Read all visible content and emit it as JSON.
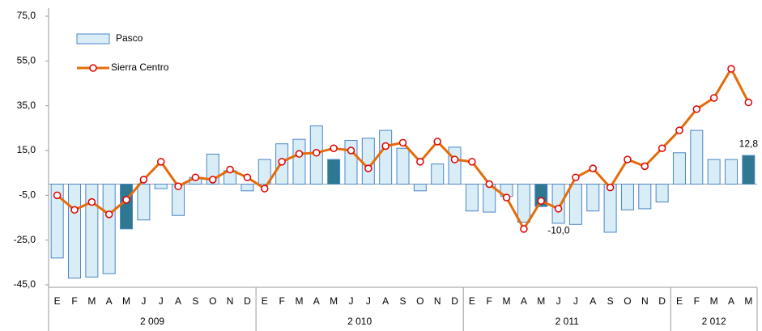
{
  "chart_data": {
    "type": "bar-line",
    "categories": [
      "E",
      "F",
      "M",
      "A",
      "M",
      "J",
      "J",
      "A",
      "S",
      "O",
      "N",
      "D",
      "E",
      "F",
      "M",
      "A",
      "M",
      "J",
      "J",
      "A",
      "S",
      "O",
      "N",
      "D",
      "E",
      "F",
      "M",
      "A",
      "M",
      "J",
      "J",
      "A",
      "S",
      "O",
      "N",
      "D",
      "E",
      "F",
      "M",
      "A",
      "M"
    ],
    "groups": [
      {
        "label": "2 009",
        "span": 12
      },
      {
        "label": "2 010",
        "span": 12
      },
      {
        "label": "2 011",
        "span": 12
      },
      {
        "label": "2 012",
        "span": 5
      }
    ],
    "series": [
      {
        "name": "Pasco",
        "kind": "bar",
        "color": "#d9edf7",
        "stroke": "#4a86c8",
        "highlight_color": "#2e7891",
        "highlighted": [
          4,
          16,
          28,
          40
        ],
        "values": [
          -33,
          -42,
          -41.5,
          -40,
          -20,
          -16,
          -2,
          -14,
          3,
          13.4,
          6,
          -3,
          11,
          18,
          20,
          26,
          11,
          19.5,
          20.5,
          24,
          16,
          -3,
          9,
          16.5,
          -12,
          -12.5,
          -5.5,
          -17,
          -10,
          -17.5,
          -18,
          -12,
          -21.5,
          -11.5,
          -11,
          -8,
          14,
          24,
          11,
          11,
          12.8
        ],
        "value_labels": [
          null,
          null,
          null,
          null,
          null,
          null,
          null,
          null,
          null,
          null,
          null,
          null,
          null,
          null,
          null,
          null,
          null,
          null,
          null,
          null,
          null,
          null,
          null,
          null,
          null,
          null,
          null,
          null,
          "-10,0",
          null,
          null,
          null,
          null,
          null,
          null,
          null,
          null,
          null,
          null,
          null,
          "12,8"
        ]
      },
      {
        "name": "Sierra Centro",
        "kind": "line",
        "color": "#e46c0a",
        "marker_color": "#e00000",
        "values": [
          -5,
          -11.5,
          -8,
          -13.5,
          -7,
          2,
          10,
          -1,
          3,
          2,
          6.5,
          3,
          -2,
          10,
          13.5,
          14,
          16,
          15,
          7,
          17,
          18.5,
          10,
          19,
          11,
          10,
          0,
          -6,
          -20,
          -7.5,
          -11,
          3,
          7,
          -1.5,
          11,
          8,
          16,
          24,
          33.5,
          38.5,
          51.5,
          36.5
        ]
      }
    ],
    "ylim": [
      -45,
      75
    ],
    "yticks": [
      {
        "value": -45,
        "label": "-45,0"
      },
      {
        "value": -25,
        "label": "-25,0"
      },
      {
        "value": -5,
        "label": "-5,0"
      },
      {
        "value": 15,
        "label": "15,0"
      },
      {
        "value": 35,
        "label": "35,0"
      },
      {
        "value": 55,
        "label": "55,0"
      },
      {
        "value": 75,
        "label": "75,0"
      }
    ],
    "grid": false,
    "legend": "top-left"
  }
}
